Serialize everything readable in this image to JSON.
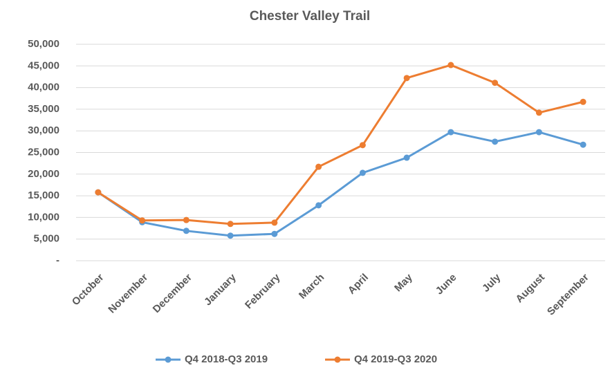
{
  "chart_data": {
    "type": "line",
    "title": "Chester Valley Trail",
    "categories": [
      "October",
      "November",
      "December",
      "January",
      "February",
      "March",
      "April",
      "May",
      "June",
      "July",
      "August",
      "September"
    ],
    "series": [
      {
        "name": "Q4 2018-Q3 2019",
        "color": "#5b9bd5",
        "values": [
          15800,
          8900,
          6900,
          5800,
          6200,
          12800,
          20300,
          23800,
          29700,
          27500,
          29700,
          26800
        ]
      },
      {
        "name": "Q4 2019-Q3 2020",
        "color": "#ed7d31",
        "values": [
          15800,
          9300,
          9400,
          8500,
          8800,
          21700,
          26700,
          42200,
          45200,
          41100,
          34200,
          36700
        ]
      }
    ],
    "ylim": [
      0,
      50000
    ],
    "yticks": [
      {
        "value": 0,
        "label": "-"
      },
      {
        "value": 5000,
        "label": "5,000"
      },
      {
        "value": 10000,
        "label": "10,000"
      },
      {
        "value": 15000,
        "label": "15,000"
      },
      {
        "value": 20000,
        "label": "20,000"
      },
      {
        "value": 25000,
        "label": "25,000"
      },
      {
        "value": 30000,
        "label": "30,000"
      },
      {
        "value": 35000,
        "label": "35,000"
      },
      {
        "value": 40000,
        "label": "40,000"
      },
      {
        "value": 45000,
        "label": "45,000"
      },
      {
        "value": 50000,
        "label": "50,000"
      }
    ],
    "grid": true,
    "legend": "bottom"
  }
}
